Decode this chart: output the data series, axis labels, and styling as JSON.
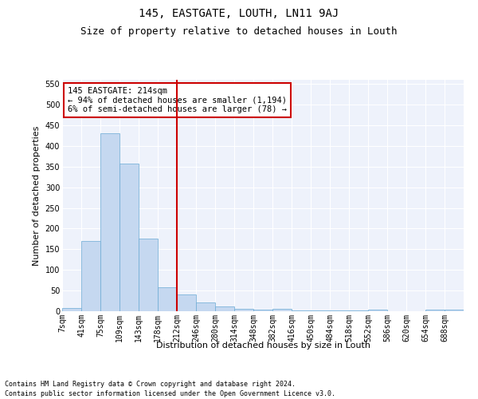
{
  "title": "145, EASTGATE, LOUTH, LN11 9AJ",
  "subtitle": "Size of property relative to detached houses in Louth",
  "xlabel": "Distribution of detached houses by size in Louth",
  "ylabel": "Number of detached properties",
  "bar_color": "#c5d8f0",
  "bar_edge_color": "#6aaad4",
  "background_color": "#eef2fb",
  "grid_color": "#ffffff",
  "vline_x": 5,
  "vline_color": "#cc0000",
  "categories": [
    "7sqm",
    "41sqm",
    "75sqm",
    "109sqm",
    "143sqm",
    "178sqm",
    "212sqm",
    "246sqm",
    "280sqm",
    "314sqm",
    "348sqm",
    "382sqm",
    "416sqm",
    "450sqm",
    "484sqm",
    "518sqm",
    "552sqm",
    "586sqm",
    "620sqm",
    "654sqm",
    "688sqm"
  ],
  "values": [
    8,
    170,
    430,
    357,
    175,
    57,
    40,
    21,
    12,
    6,
    4,
    5,
    2,
    2,
    1,
    1,
    4,
    0,
    0,
    4,
    4
  ],
  "ylim": [
    0,
    560
  ],
  "yticks": [
    0,
    50,
    100,
    150,
    200,
    250,
    300,
    350,
    400,
    450,
    500,
    550
  ],
  "annotation_text": "145 EASTGATE: 214sqm\n← 94% of detached houses are smaller (1,194)\n6% of semi-detached houses are larger (78) →",
  "footnote1": "Contains HM Land Registry data © Crown copyright and database right 2024.",
  "footnote2": "Contains public sector information licensed under the Open Government Licence v3.0.",
  "title_fontsize": 10,
  "subtitle_fontsize": 9,
  "label_fontsize": 8,
  "tick_fontsize": 7,
  "annot_fontsize": 7.5,
  "footnote_fontsize": 6
}
